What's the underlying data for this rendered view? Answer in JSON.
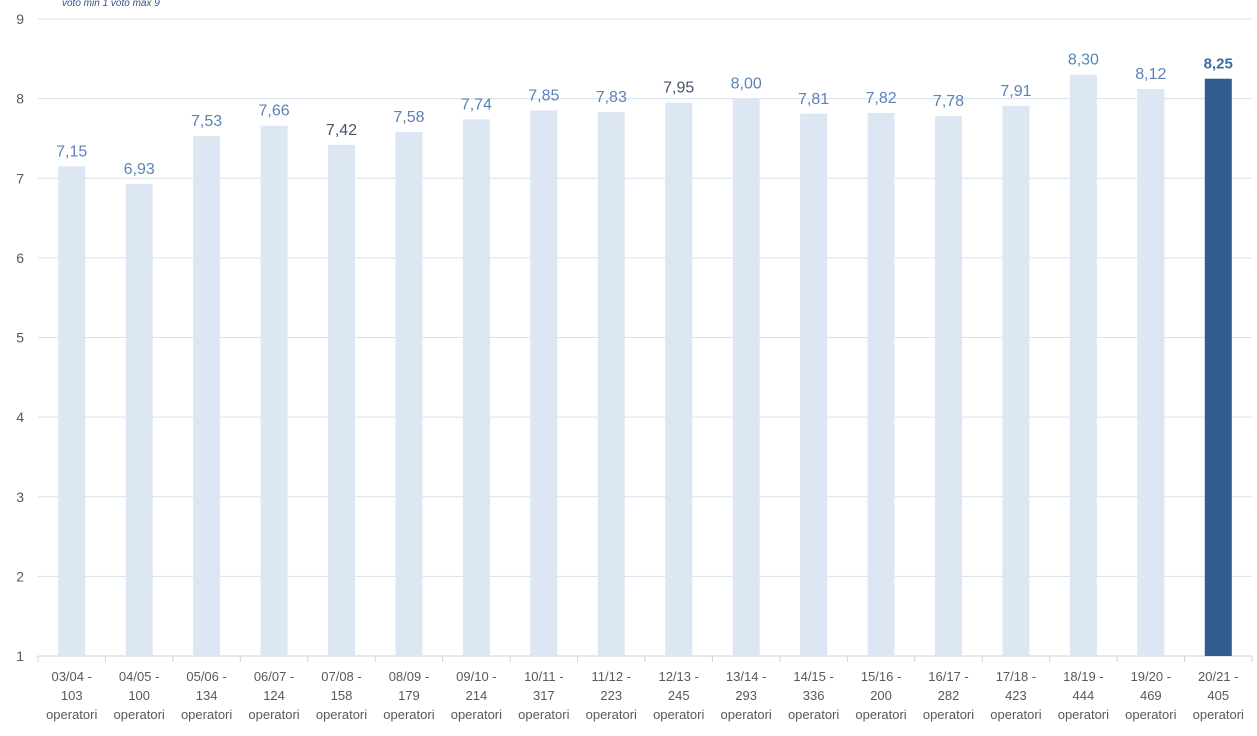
{
  "note": "voto min 1 voto max 9",
  "colors": {
    "bar": "#dde6f3",
    "highlight_bar": "#325b8f",
    "label": "#5b82b8",
    "label_dark": "#44546a",
    "highlight_label": "#3d6aa6",
    "grid": "#d9e1ec",
    "axis_text": "#595959"
  },
  "chart_data": {
    "type": "bar",
    "title": "",
    "xlabel": "",
    "ylabel": "",
    "ylim": [
      1,
      9
    ],
    "yticks": [
      1,
      2,
      3,
      4,
      5,
      6,
      7,
      8,
      9
    ],
    "grid": true,
    "legend": "none",
    "categories": [
      [
        "03/04 -",
        "103",
        "operatori"
      ],
      [
        "04/05 -",
        "100",
        "operatori"
      ],
      [
        "05/06 -",
        "134",
        "operatori"
      ],
      [
        "06/07 -",
        "124",
        "operatori"
      ],
      [
        "07/08 -",
        "158",
        "operatori"
      ],
      [
        "08/09 -",
        "179",
        "operatori"
      ],
      [
        "09/10 -",
        "214",
        "operatori"
      ],
      [
        "10/11 -",
        "317",
        "operatori"
      ],
      [
        "11/12 -",
        "223",
        "operatori"
      ],
      [
        "12/13 -",
        "245",
        "operatori"
      ],
      [
        "13/14 -",
        "293",
        "operatori"
      ],
      [
        "14/15 -",
        "336",
        "operatori"
      ],
      [
        "15/16 -",
        "200",
        "operatori"
      ],
      [
        "16/17 -",
        "282",
        "operatori"
      ],
      [
        "17/18 -",
        "423",
        "operatori"
      ],
      [
        "18/19 -",
        "444",
        "operatori"
      ],
      [
        "19/20 -",
        "469",
        "operatori"
      ],
      [
        "20/21 -",
        "405",
        "operatori"
      ]
    ],
    "values": [
      7.15,
      6.93,
      7.53,
      7.66,
      7.42,
      7.58,
      7.74,
      7.85,
      7.83,
      7.95,
      8.0,
      7.81,
      7.82,
      7.78,
      7.91,
      8.3,
      8.12,
      8.25
    ],
    "data_labels": [
      "7,15",
      "6,93",
      "7,53",
      "7,66",
      "7,42",
      "7,58",
      "7,74",
      "7,85",
      "7,83",
      "7,95",
      "8,00",
      "7,81",
      "7,82",
      "7,78",
      "7,91",
      "8,30",
      "8,12",
      "8,25"
    ],
    "highlight_index": 17
  }
}
